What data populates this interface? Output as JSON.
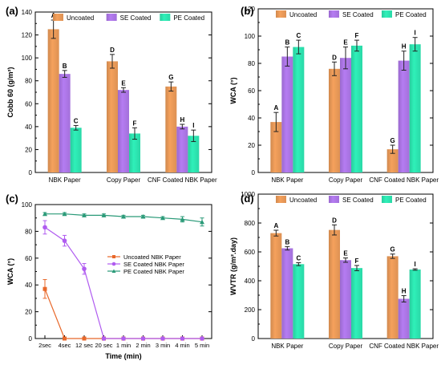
{
  "figure": {
    "title": ""
  },
  "chart_data": [
    {
      "panel_label": "(a)",
      "type": "bar",
      "ylabel": "Cobb 60 (g/m²)",
      "xlabel": "",
      "ylim": [
        0,
        140
      ],
      "yticks": [
        0,
        20,
        40,
        60,
        80,
        100,
        120,
        140
      ],
      "categories": [
        "NBK Paper",
        "Copy Paper",
        "CNF Coated NBK Paper"
      ],
      "legend_position": "top",
      "grid": false,
      "series": [
        {
          "name": "Uncoated",
          "color": "#f5a15c",
          "values": [
            125,
            97,
            75
          ],
          "errors": [
            8,
            6,
            4
          ],
          "letters": [
            "A",
            "D",
            "G"
          ]
        },
        {
          "name": "SE Coated",
          "color": "#b57cf2",
          "values": [
            86,
            72,
            40
          ],
          "errors": [
            3,
            2,
            2
          ],
          "letters": [
            "B",
            "E",
            "H"
          ]
        },
        {
          "name": "PE Coated",
          "color": "#2ff0b9",
          "values": [
            39,
            34,
            32
          ],
          "errors": [
            2,
            5,
            5
          ],
          "letters": [
            "C",
            "F",
            "I"
          ]
        }
      ]
    },
    {
      "panel_label": "(b)",
      "type": "bar",
      "ylabel": "WCA (°)",
      "xlabel": "",
      "ylim": [
        0,
        120
      ],
      "yticks": [
        0,
        20,
        40,
        60,
        80,
        100,
        120
      ],
      "categories": [
        "NBK Paper",
        "Copy Paper",
        "CNF Coated NBK Paper"
      ],
      "legend_position": "top",
      "grid": false,
      "series": [
        {
          "name": "Uncoated",
          "color": "#f5a15c",
          "values": [
            37,
            76,
            17
          ],
          "errors": [
            7,
            5,
            3
          ],
          "letters": [
            "A",
            "D",
            "G"
          ]
        },
        {
          "name": "SE Coated",
          "color": "#b57cf2",
          "values": [
            85,
            84,
            82
          ],
          "errors": [
            7,
            8,
            7
          ],
          "letters": [
            "B",
            "E",
            "H"
          ]
        },
        {
          "name": "PE Coated",
          "color": "#2ff0b9",
          "values": [
            92,
            93,
            94
          ],
          "errors": [
            5,
            4,
            5
          ],
          "letters": [
            "C",
            "F",
            "I"
          ]
        }
      ]
    },
    {
      "panel_label": "(c)",
      "type": "line",
      "ylabel": "WCA (°)",
      "xlabel": "Time (min)",
      "ylim": [
        0,
        100
      ],
      "yticks": [
        0,
        20,
        40,
        60,
        80,
        100
      ],
      "x": [
        "2sec",
        "4sec",
        "12 sec",
        "20 sec",
        "1 min",
        "2 min",
        "3 min",
        "4 min",
        "5 min"
      ],
      "legend_position": "center-right",
      "grid": false,
      "series": [
        {
          "name": "Uncoated  NBK Paper",
          "color": "#e8682a",
          "marker": "square",
          "values": [
            37,
            0,
            0,
            0,
            0,
            0,
            0,
            0,
            0
          ],
          "errors": [
            7,
            0,
            0,
            0,
            0,
            0,
            0,
            0,
            0
          ]
        },
        {
          "name": "SE Coated NBK Paper",
          "color": "#b05cf0",
          "marker": "circle",
          "values": [
            83,
            73,
            52,
            0,
            0,
            0,
            0,
            0,
            0
          ],
          "errors": [
            5,
            4,
            4,
            0,
            0,
            0,
            0,
            0,
            0
          ]
        },
        {
          "name": "PE Coated NBK Paper",
          "color": "#2a9a78",
          "marker": "triangle",
          "values": [
            93,
            93,
            92,
            92,
            91,
            91,
            90,
            89,
            87
          ],
          "errors": [
            1,
            1,
            1,
            1,
            1,
            1,
            1,
            2,
            3
          ]
        }
      ]
    },
    {
      "panel_label": "(d)",
      "type": "bar",
      "ylabel": "WVTR (g/m².day)",
      "xlabel": "",
      "ylim": [
        0,
        1000
      ],
      "yticks": [
        0,
        200,
        400,
        600,
        800,
        1000
      ],
      "categories": [
        "NBK Paper",
        "Copy Paper",
        "CNF Coated NBK Paper"
      ],
      "legend_position": "top",
      "grid": false,
      "series": [
        {
          "name": "Uncoated",
          "color": "#f5a15c",
          "values": [
            730,
            752,
            570
          ],
          "errors": [
            20,
            35,
            15
          ],
          "letters": [
            "A",
            "D",
            "G"
          ]
        },
        {
          "name": "SE Coated",
          "color": "#b57cf2",
          "values": [
            625,
            543,
            275
          ],
          "errors": [
            12,
            15,
            22
          ],
          "letters": [
            "B",
            "E",
            "H"
          ]
        },
        {
          "name": "PE Coated",
          "color": "#2ff0b9",
          "values": [
            515,
            488,
            478
          ],
          "errors": [
            10,
            18,
            5
          ],
          "letters": [
            "C",
            "F",
            "I"
          ]
        }
      ]
    }
  ]
}
